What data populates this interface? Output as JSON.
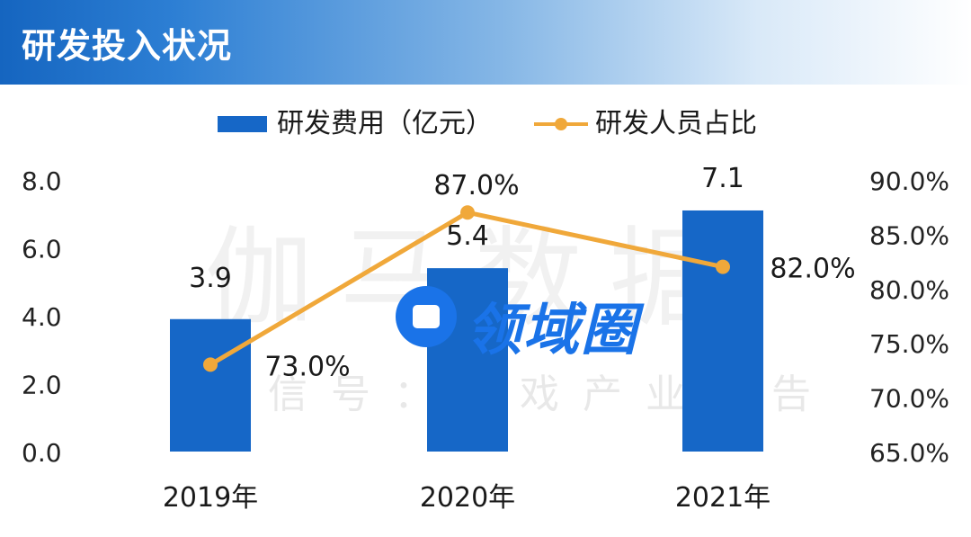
{
  "header": {
    "title": "研发投入状况"
  },
  "legend": {
    "bar_label": "研发费用（亿元）",
    "line_label": "研发人员占比"
  },
  "watermark": {
    "big_text": "伽马数据",
    "small_text": "微信号：游戏产业报告",
    "logo_text": "领域圈"
  },
  "colors": {
    "bar": "#1667c7",
    "line": "#f0a83a",
    "header": "#1565c0",
    "logo": "#1a73e8"
  },
  "chart_data": {
    "type": "bar",
    "categories": [
      "2019年",
      "2020年",
      "2021年"
    ],
    "series": [
      {
        "name": "研发费用（亿元）",
        "type": "bar",
        "axis": "left",
        "values": [
          3.9,
          5.4,
          7.1
        ],
        "labels": [
          "3.9",
          "5.4",
          "7.1"
        ]
      },
      {
        "name": "研发人员占比",
        "type": "line",
        "axis": "right",
        "values": [
          73.0,
          87.0,
          82.0
        ],
        "labels": [
          "73.0%",
          "87.0%",
          "82.0%"
        ]
      }
    ],
    "y_left": {
      "range": [
        0,
        8
      ],
      "ticks": [
        "0.0",
        "2.0",
        "4.0",
        "6.0",
        "8.0"
      ]
    },
    "y_right": {
      "range": [
        65,
        90
      ],
      "ticks": [
        "65.0%",
        "70.0%",
        "75.0%",
        "80.0%",
        "85.0%",
        "90.0%"
      ]
    },
    "grid": false,
    "legend_position": "top"
  }
}
